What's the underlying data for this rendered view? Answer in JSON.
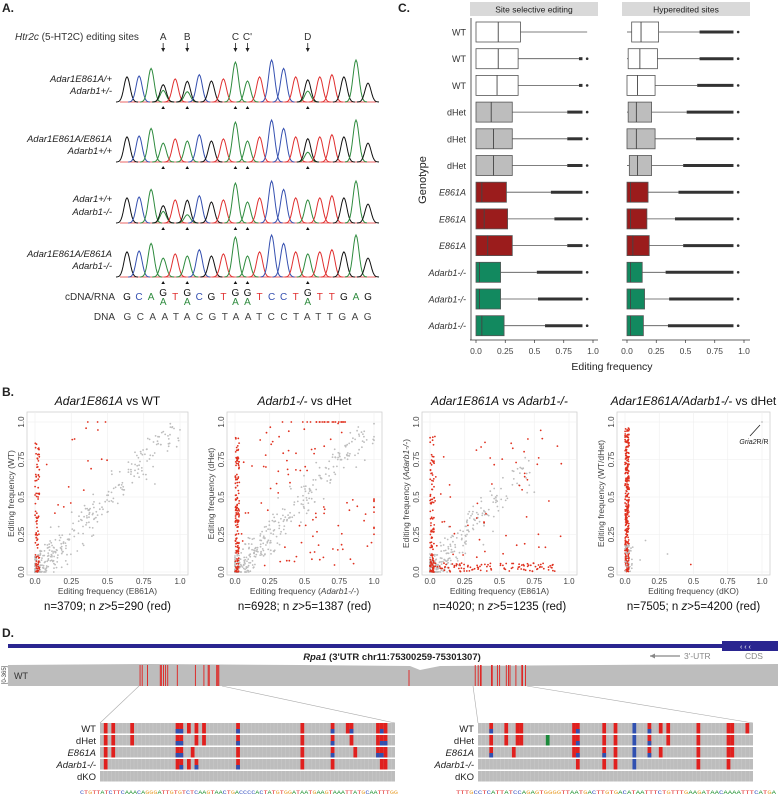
{
  "panel_labels": {
    "a": "A.",
    "b": "B.",
    "c": "C.",
    "d": "D."
  },
  "panel_a": {
    "title_gene": "Htr2c",
    "title_rest": " (5-HT2C) editing sites",
    "sites": [
      {
        "label": "A",
        "index": 3
      },
      {
        "label": "B",
        "index": 5
      },
      {
        "label": "C",
        "index": 9
      },
      {
        "label": "C'",
        "index": 10
      },
      {
        "label": "D",
        "index": 15
      }
    ],
    "rows": [
      {
        "line1": "Adar1E861A/+",
        "line2": "Adarb1+/-",
        "edited_fraction": [
          0.6,
          0.7,
          0,
          0,
          0.7
        ]
      },
      {
        "line1": "Adar1E861A/E861A",
        "line2": "Adarb1+/+",
        "edited_fraction": [
          0,
          0,
          0,
          0,
          0.75
        ]
      },
      {
        "line1": "Adar1+/+",
        "line2": "Adarb1-/-",
        "edited_fraction": [
          0.6,
          0.8,
          0,
          0,
          0
        ]
      },
      {
        "line1": "Adar1E861A/E861A",
        "line2": "Adarb1-/-",
        "edited_fraction": [
          0,
          0,
          0,
          0,
          0
        ]
      }
    ],
    "peak_heights": [
      0.6,
      0.62,
      0.8,
      0.45,
      0.55,
      0.5,
      0.65,
      0.5,
      0.55,
      0.95,
      0.5,
      0.6,
      1.0,
      0.8,
      0.6,
      0.55,
      0.6,
      0.65,
      0.6,
      1.0,
      0.45
    ],
    "cdna_label": "cDNA/RNA",
    "dna_label": "DNA",
    "dna_sequence": "GCAATACGTAATCCTATTGAG",
    "edited_base": "G",
    "base_colors": {
      "A": "#2e8b3e",
      "C": "#3550b0",
      "G": "#111111",
      "T": "#e03030"
    }
  },
  "chart_data": [
    {
      "type": "scatter",
      "title": [
        {
          "text": "Adar1E861A",
          "italic": true
        },
        {
          "text": " vs WT",
          "italic": false
        }
      ],
      "xlabel": [
        {
          "text": "Editing frequency (E861A)",
          "italic": false
        }
      ],
      "ylabel": [
        {
          "text": "Editing frequency (WT)",
          "italic": false
        }
      ],
      "xlim": [
        0,
        1
      ],
      "ylim": [
        0,
        1
      ],
      "xticks": [
        "0.0",
        "0.25",
        "0.5",
        "0.75",
        "1.0"
      ],
      "yticks": [
        "0.0",
        "0.25",
        "0.5",
        "0.75",
        "1.0"
      ],
      "n": 3709,
      "n_red": 290,
      "caption": [
        "n=3709; n ",
        "z",
        ">5=290 (red)"
      ],
      "series": [
        {
          "name": "z>5",
          "color": "#e0301e"
        },
        {
          "name": "other",
          "color": "#bdbdbd"
        }
      ]
    },
    {
      "type": "scatter",
      "title": [
        {
          "text": "Adarb1-/-",
          "italic": true
        },
        {
          "text": " vs dHet",
          "italic": false
        }
      ],
      "xlabel": [
        {
          "text": "Editing frequency (",
          "italic": false
        },
        {
          "text": "Adarb1-/-",
          "italic": true
        },
        {
          "text": ")",
          "italic": false
        }
      ],
      "ylabel": [
        {
          "text": "Editing frequency (dHet)",
          "italic": false
        }
      ],
      "xlim": [
        0,
        1
      ],
      "ylim": [
        0,
        1
      ],
      "xticks": [
        "0.0",
        "0.25",
        "0.5",
        "0.75",
        "1.0"
      ],
      "yticks": [
        "0.0",
        "0.25",
        "0.5",
        "0.75",
        "1.0"
      ],
      "n": 6928,
      "n_red": 1387,
      "caption": [
        "n=6928; n ",
        "z",
        ">5=1387 (red)"
      ],
      "series": [
        {
          "name": "z>5",
          "color": "#e0301e"
        },
        {
          "name": "other",
          "color": "#bdbdbd"
        }
      ]
    },
    {
      "type": "scatter",
      "title": [
        {
          "text": "Adar1E861A",
          "italic": true
        },
        {
          "text": " vs ",
          "italic": false
        },
        {
          "text": "Adarb1-/-",
          "italic": true
        }
      ],
      "xlabel": [
        {
          "text": "Editing frequency (E861A)",
          "italic": false
        }
      ],
      "ylabel": [
        {
          "text": "Editing frequency (",
          "italic": false
        },
        {
          "text": "Adarb1-/-",
          "italic": true
        },
        {
          "text": ")",
          "italic": false
        }
      ],
      "xlim": [
        0,
        1
      ],
      "ylim": [
        0,
        1
      ],
      "xticks": [
        "0.0",
        "0.25",
        "0.5",
        "0.75",
        "1.0"
      ],
      "yticks": [
        "0.0",
        "0.25",
        "0.5",
        "0.75",
        "1.0"
      ],
      "n": 4020,
      "n_red": 1235,
      "caption": [
        "n=4020; n ",
        "z",
        ">5=1235 (red)"
      ],
      "series": [
        {
          "name": "z>5",
          "color": "#e0301e"
        },
        {
          "name": "other",
          "color": "#bdbdbd"
        }
      ]
    },
    {
      "type": "scatter",
      "title": [
        {
          "text": "Adar1E861A/Adarb1-/-",
          "italic": true
        },
        {
          "text": " vs dHet",
          "italic": false
        }
      ],
      "xlabel": [
        {
          "text": "Editing frequency (dKO)",
          "italic": false
        }
      ],
      "ylabel": [
        {
          "text": "Editing frequency (WT/dHet)",
          "italic": false
        }
      ],
      "xlim": [
        0,
        1
      ],
      "ylim": [
        0,
        1
      ],
      "xticks": [
        "0.0",
        "0.25",
        "0.5",
        "0.75",
        "1.0"
      ],
      "yticks": [
        "0.0",
        "0.25",
        "0.5",
        "0.75",
        "1.0"
      ],
      "n": 7505,
      "n_red": 4200,
      "caption": [
        "n=7505; n ",
        "z",
        ">5=4200 (red)"
      ],
      "annotation": {
        "text_italic": "Gria2",
        "text_rest": "R/R",
        "x": 1.0,
        "y": 1.0
      },
      "series": [
        {
          "name": "z>5",
          "color": "#e0301e"
        },
        {
          "name": "other",
          "color": "#bdbdbd"
        }
      ]
    },
    {
      "type": "box",
      "facets": [
        "Site selective editing",
        "Hyperedited sites"
      ],
      "categories": [
        "WT",
        "WT",
        "WT",
        "dHet",
        "dHet",
        "dHet",
        "E861A",
        "E861A",
        "E861A",
        "Adarb1-/-",
        "Adarb1-/-",
        "Adarb1-/-"
      ],
      "category_italic": [
        false,
        false,
        false,
        false,
        false,
        false,
        true,
        true,
        true,
        true,
        true,
        true
      ],
      "fills": {
        "WT": "#ffffff",
        "dHet": "#bdbdbd",
        "E861A": "#9b1c1c",
        "Adarb1-/-": "#12895f"
      },
      "ylabel": "Genotype",
      "xlabel": "Editing frequency",
      "xlim": [
        0,
        1
      ],
      "xticks": [
        "0.0",
        "0.25",
        "0.5",
        "0.75",
        "1.0"
      ],
      "box_fields": [
        "whisker_low",
        "q1",
        "median",
        "q3",
        "whisker_high",
        "outlier_max"
      ],
      "series": [
        {
          "facet": "Site selective editing",
          "boxes": [
            [
              0,
              0,
              0.19,
              0.38,
              0.95,
              0.95
            ],
            [
              0,
              0,
              0.19,
              0.36,
              0.88,
              0.95
            ],
            [
              0,
              0,
              0.18,
              0.36,
              0.88,
              0.95
            ],
            [
              0,
              0,
              0.13,
              0.31,
              0.78,
              0.95
            ],
            [
              0,
              0,
              0.15,
              0.31,
              0.78,
              0.95
            ],
            [
              0,
              0,
              0.15,
              0.31,
              0.78,
              0.95
            ],
            [
              0,
              0,
              0.05,
              0.26,
              0.64,
              0.95
            ],
            [
              0,
              0,
              0.07,
              0.27,
              0.67,
              0.95
            ],
            [
              0,
              0,
              0.1,
              0.31,
              0.78,
              0.95
            ],
            [
              0,
              0,
              0.03,
              0.21,
              0.52,
              0.95
            ],
            [
              0,
              0,
              0.03,
              0.21,
              0.53,
              0.95
            ],
            [
              0,
              0,
              0.05,
              0.24,
              0.59,
              0.95
            ]
          ]
        },
        {
          "facet": "Hyperedited sites",
          "boxes": [
            [
              0,
              0.04,
              0.12,
              0.27,
              0.62,
              0.95
            ],
            [
              0,
              0.01,
              0.11,
              0.26,
              0.62,
              0.95
            ],
            [
              0,
              0,
              0.09,
              0.24,
              0.6,
              0.95
            ],
            [
              0,
              0.01,
              0.08,
              0.21,
              0.51,
              0.95
            ],
            [
              0,
              0,
              0.08,
              0.24,
              0.59,
              0.95
            ],
            [
              0,
              0.02,
              0.09,
              0.21,
              0.48,
              0.95
            ],
            [
              0,
              0,
              0.03,
              0.18,
              0.44,
              0.95
            ],
            [
              0,
              0,
              0.03,
              0.17,
              0.41,
              0.95
            ],
            [
              0,
              0,
              0.05,
              0.19,
              0.48,
              0.95
            ],
            [
              0,
              0,
              0.03,
              0.13,
              0.33,
              0.95
            ],
            [
              0,
              0,
              0.03,
              0.15,
              0.36,
              0.95
            ],
            [
              0,
              0,
              0.03,
              0.14,
              0.35,
              0.95
            ]
          ]
        }
      ]
    }
  ],
  "panel_d": {
    "gene_italic": "Rpa1",
    "track_title_rest": " (3'UTR chr11:75300259-75301307)",
    "utr_label": "3'-UTR",
    "cds_label": "CDS",
    "range_label": "[0-365]",
    "coverage_sample": "WT",
    "samples": [
      {
        "label": "WT",
        "italic": false
      },
      {
        "label": "dHet",
        "italic": false
      },
      {
        "label": "E861A",
        "italic": true
      },
      {
        "label": "Adarb1-/-",
        "italic": true
      },
      {
        "label": "dKO",
        "italic": false
      }
    ],
    "colors": {
      "A": "#2e9a3e",
      "C": "#3550c0",
      "G": "#e8a030",
      "T": "#e02020",
      "mismatch_red": "#e0201e",
      "mismatch_blue": "#3050b0",
      "mismatch_green": "#1a8a3a",
      "read": "#bdbdbd",
      "gene": "#2a2590"
    },
    "windows": [
      {
        "sequence": "CTGTTATCTTCAAACAGGGATTGTGTCTCAAGTAACTGACCCCACTATGTGGATAATGAAGTAAATTATGCAATTTGG",
        "rows": [
          {
            "red": [
              1,
              3,
              8,
              20,
              21,
              23,
              25,
              27,
              36,
              53,
              61,
              65,
              66,
              73,
              74,
              75
            ],
            "blue": [
              20,
              21,
              36,
              61,
              66,
              74
            ],
            "green": []
          },
          {
            "red": [
              1,
              3,
              8,
              20,
              21,
              25,
              27,
              36,
              53,
              61,
              66,
              73,
              74,
              75
            ],
            "blue": [
              20,
              21,
              36,
              61,
              74,
              75
            ],
            "green": []
          },
          {
            "red": [
              1,
              3,
              20,
              21,
              24,
              36,
              53,
              61,
              67,
              73,
              74,
              75
            ],
            "blue": [
              20,
              21,
              61,
              73,
              74
            ],
            "green": []
          },
          {
            "red": [
              1,
              20,
              21,
              23,
              25,
              36,
              53,
              61,
              74,
              75
            ],
            "blue": [
              21,
              25,
              36
            ],
            "green": []
          },
          {
            "red": [],
            "blue": [],
            "green": []
          }
        ]
      },
      {
        "sequence": "TTTGCCTCATTATCCAGAGTGGGGTTAATGACTTGTGACATAATTTCTGTTTGAAGATAACAAAATTTCATGA",
        "rows": [
          {
            "red": [
              3,
              7,
              10,
              11,
              25,
              26,
              33,
              36,
              45,
              48,
              50,
              58,
              66,
              67,
              71
            ],
            "blue": [
              3,
              26,
              41,
              45
            ],
            "green": []
          },
          {
            "red": [
              3,
              7,
              10,
              11,
              25,
              26,
              33,
              36,
              45,
              50,
              58,
              66,
              67
            ],
            "blue": [
              26,
              41,
              45
            ],
            "green": [
              18
            ]
          },
          {
            "red": [
              3,
              9,
              25,
              26,
              33,
              36,
              45,
              48,
              58,
              66,
              67
            ],
            "blue": [
              3,
              26,
              33,
              41,
              45
            ],
            "green": []
          },
          {
            "red": [
              26,
              33,
              36,
              58,
              66
            ],
            "blue": [
              41
            ],
            "green": []
          },
          {
            "red": [],
            "blue": [],
            "green": []
          }
        ]
      }
    ]
  }
}
